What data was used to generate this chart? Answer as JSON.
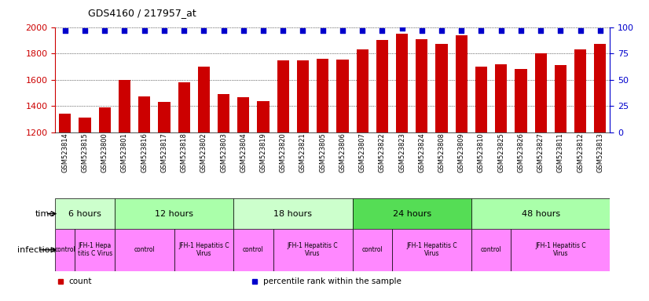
{
  "title": "GDS4160 / 217957_at",
  "samples": [
    "GSM523814",
    "GSM523815",
    "GSM523800",
    "GSM523801",
    "GSM523816",
    "GSM523817",
    "GSM523818",
    "GSM523802",
    "GSM523803",
    "GSM523804",
    "GSM523819",
    "GSM523820",
    "GSM523821",
    "GSM523805",
    "GSM523806",
    "GSM523807",
    "GSM523822",
    "GSM523823",
    "GSM523824",
    "GSM523808",
    "GSM523809",
    "GSM523810",
    "GSM523825",
    "GSM523826",
    "GSM523827",
    "GSM523811",
    "GSM523812",
    "GSM523813"
  ],
  "counts": [
    1340,
    1310,
    1390,
    1600,
    1475,
    1430,
    1580,
    1700,
    1490,
    1470,
    1435,
    1745,
    1750,
    1760,
    1755,
    1830,
    1900,
    1950,
    1910,
    1875,
    1940,
    1700,
    1720,
    1680,
    1800,
    1710,
    1830,
    1870
  ],
  "percentile_ranks": [
    97,
    97,
    97,
    97,
    97,
    97,
    97,
    97,
    97,
    97,
    97,
    97,
    97,
    97,
    97,
    97,
    97,
    99,
    97,
    97,
    97,
    97,
    97,
    97,
    97,
    97,
    97,
    97
  ],
  "ylim_left": [
    1200,
    2000
  ],
  "ylim_right": [
    0,
    100
  ],
  "yticks_left": [
    1200,
    1400,
    1600,
    1800,
    2000
  ],
  "yticks_right": [
    0,
    25,
    50,
    75,
    100
  ],
  "left_color": "#cc0000",
  "right_color": "#0000cc",
  "bar_color": "#cc0000",
  "dot_color": "#0000cc",
  "grid_color": "#000000",
  "time_groups": [
    {
      "label": "6 hours",
      "start": 0,
      "end": 3,
      "color": "#ccffcc"
    },
    {
      "label": "12 hours",
      "start": 3,
      "end": 9,
      "color": "#aaffaa"
    },
    {
      "label": "18 hours",
      "start": 9,
      "end": 15,
      "color": "#ccffcc"
    },
    {
      "label": "24 hours",
      "start": 15,
      "end": 21,
      "color": "#55dd55"
    },
    {
      "label": "48 hours",
      "start": 21,
      "end": 28,
      "color": "#aaffaa"
    }
  ],
  "infection_groups": [
    {
      "label": "control",
      "start": 0,
      "end": 1
    },
    {
      "label": "JFH-1 Hepa\ntitis C Virus",
      "start": 1,
      "end": 3
    },
    {
      "label": "control",
      "start": 3,
      "end": 6
    },
    {
      "label": "JFH-1 Hepatitis C\nVirus",
      "start": 6,
      "end": 9
    },
    {
      "label": "control",
      "start": 9,
      "end": 11
    },
    {
      "label": "JFH-1 Hepatitis C\nVirus",
      "start": 11,
      "end": 15
    },
    {
      "label": "control",
      "start": 15,
      "end": 17
    },
    {
      "label": "JFH-1 Hepatitis C\nVirus",
      "start": 17,
      "end": 21
    },
    {
      "label": "control",
      "start": 21,
      "end": 23
    },
    {
      "label": "JFH-1 Hepatitis C\nVirus",
      "start": 23,
      "end": 28
    }
  ],
  "infect_color": "#ff88ff",
  "legend_items": [
    {
      "label": "count",
      "color": "#cc0000"
    },
    {
      "label": "percentile rank within the sample",
      "color": "#0000cc"
    }
  ]
}
